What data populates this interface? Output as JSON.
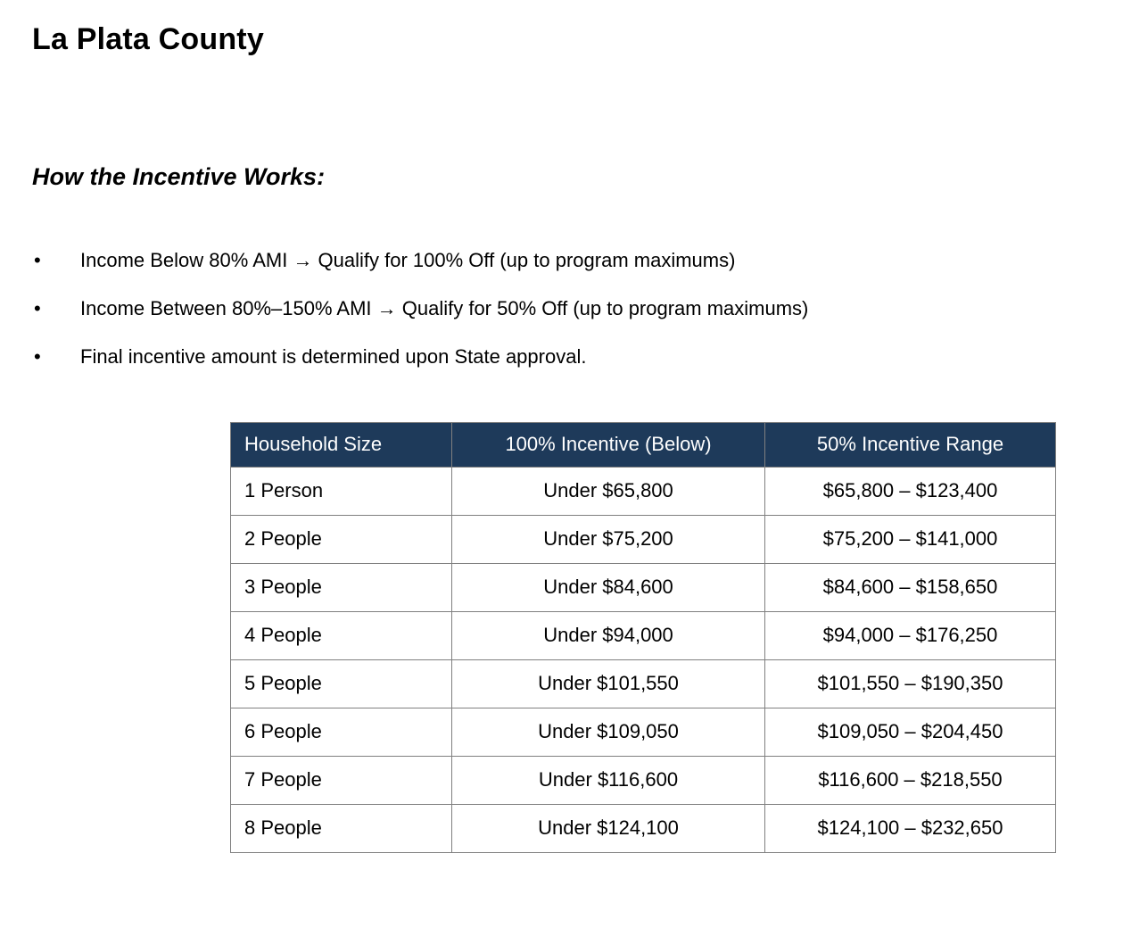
{
  "page": {
    "title": "La Plata County",
    "section_heading": "How the Incentive Works:",
    "bullets": [
      "Income Below 80% AMI → Qualify for 100% Off (up to program maximums)",
      "Income Between 80%–150% AMI → Qualify for 50% Off (up to program maximums)",
      "Final incentive amount is determined upon State approval."
    ]
  },
  "icons": {
    "bullet": "•"
  },
  "table": {
    "headers": [
      "Household Size",
      "100% Incentive (Below)",
      "50% Incentive Range"
    ],
    "rows": [
      [
        "1 Person",
        "Under $65,800",
        "$65,800 – $123,400"
      ],
      [
        "2 People",
        "Under $75,200",
        "$75,200 – $141,000"
      ],
      [
        "3 People",
        "Under $84,600",
        "$84,600 – $158,650"
      ],
      [
        "4 People",
        "Under $94,000",
        "$94,000 – $176,250"
      ],
      [
        "5 People",
        "Under $101,550",
        "$101,550 – $190,350"
      ],
      [
        "6 People",
        "Under $109,050",
        "$109,050 – $204,450"
      ],
      [
        "7 People",
        "Under $116,600",
        "$116,600 – $218,550"
      ],
      [
        "8 People",
        "Under $124,100",
        "$124,100 – $232,650"
      ]
    ]
  },
  "colors": {
    "header_bg": "#1e3a5a",
    "header_text": "#ffffff",
    "border": "#808080",
    "text": "#000000",
    "background": "#ffffff"
  }
}
